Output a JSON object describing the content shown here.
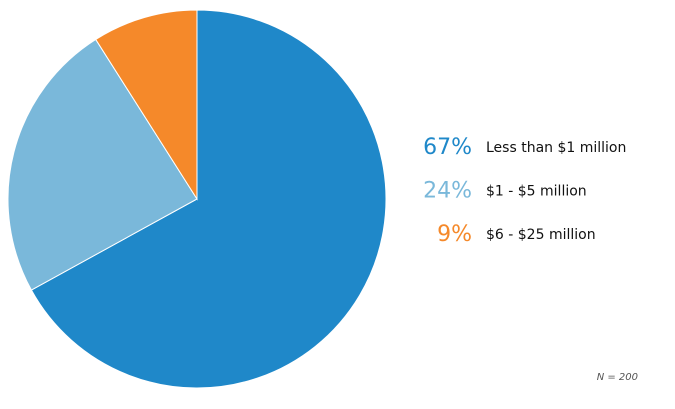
{
  "chart_data": {
    "type": "pie",
    "categories": [
      "Less than $1 million",
      "$1 - $5 million",
      "$6 - $25 million"
    ],
    "values": [
      67,
      24,
      9
    ],
    "value_labels": [
      "67%",
      "24%",
      "9%"
    ],
    "colors": [
      "#1f88c9",
      "#7ab8da",
      "#f5892a"
    ],
    "annotation": "N = 200"
  }
}
